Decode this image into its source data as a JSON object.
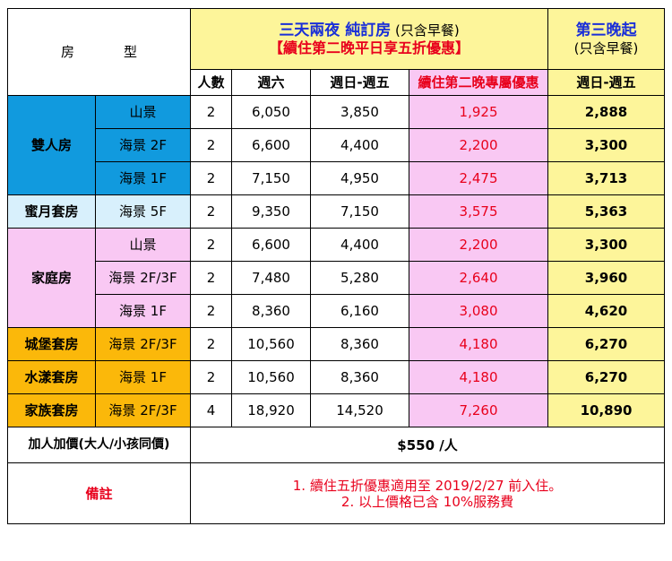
{
  "header": {
    "room_type": "房　型",
    "plan_title": "三天兩夜  純訂房",
    "plan_sub": "(只含早餐)",
    "plan_promo": "【續住第二晚平日享五折優惠】",
    "third_title": "第三晚起",
    "third_sub": "(只含早餐)"
  },
  "columns": {
    "persons": "人數",
    "saturday": "週六",
    "weekday": "週日-週五",
    "promo": "續住第二晚專屬優惠",
    "third_weekday": "週日-週五"
  },
  "groups": [
    {
      "name": "雙人房",
      "color": "blue",
      "rows": [
        {
          "view": "山景",
          "persons": "2",
          "sat": "6,050",
          "weekday": "3,850",
          "promo": "1,925",
          "third": "2,888"
        },
        {
          "view": "海景 2F",
          "persons": "2",
          "sat": "6,600",
          "weekday": "4,400",
          "promo": "2,200",
          "third": "3,300"
        },
        {
          "view": "海景 1F",
          "persons": "2",
          "sat": "7,150",
          "weekday": "4,950",
          "promo": "2,475",
          "third": "3,713"
        }
      ]
    },
    {
      "name": "蜜月套房",
      "color": "ltblue",
      "rows": [
        {
          "view": "海景 5F",
          "persons": "2",
          "sat": "9,350",
          "weekday": "7,150",
          "promo": "3,575",
          "third": "5,363"
        }
      ]
    },
    {
      "name": "家庭房",
      "color": "pink",
      "rows": [
        {
          "view": "山景",
          "persons": "2",
          "sat": "6,600",
          "weekday": "4,400",
          "promo": "2,200",
          "third": "3,300"
        },
        {
          "view": "海景 2F/3F",
          "persons": "2",
          "sat": "7,480",
          "weekday": "5,280",
          "promo": "2,640",
          "third": "3,960"
        },
        {
          "view": "海景 1F",
          "persons": "2",
          "sat": "8,360",
          "weekday": "6,160",
          "promo": "3,080",
          "third": "4,620"
        }
      ]
    },
    {
      "name": "城堡套房",
      "color": "orange",
      "rows": [
        {
          "view": "海景 2F/3F",
          "persons": "2",
          "sat": "10,560",
          "weekday": "8,360",
          "promo": "4,180",
          "third": "6,270"
        }
      ]
    },
    {
      "name": "水漾套房",
      "color": "orange",
      "rows": [
        {
          "view": "海景 1F",
          "persons": "2",
          "sat": "10,560",
          "weekday": "8,360",
          "promo": "4,180",
          "third": "6,270"
        }
      ]
    },
    {
      "name": "家族套房",
      "color": "orange",
      "rows": [
        {
          "view": "海景 2F/3F",
          "persons": "4",
          "sat": "18,920",
          "weekday": "14,520",
          "promo": "7,260",
          "third": "10,890"
        }
      ]
    }
  ],
  "extra": {
    "label": "加人加價(大人/小孩同價)",
    "value": "$550 /人"
  },
  "notes": {
    "label": "備註",
    "items": [
      "1.  續住五折優惠適用至 2019/2/27 前入住。",
      "2.  以上價格已含 10%服務費"
    ]
  },
  "colors": {
    "blue": "#119ade",
    "ltblue": "#d8f0fc",
    "pink": "#f9c8f3",
    "orange": "#fbb80a",
    "yellow": "#fdf59a",
    "red": "#e8001c",
    "navy": "#1a2fd8"
  }
}
